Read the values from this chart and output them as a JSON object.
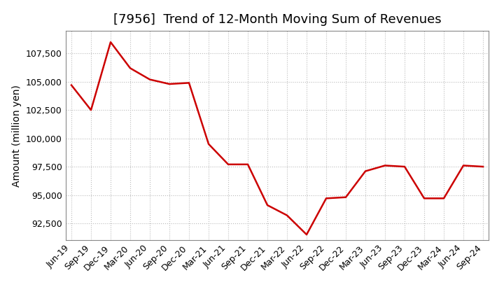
{
  "title": "[7956]  Trend of 12-Month Moving Sum of Revenues",
  "ylabel": "Amount (million yen)",
  "x_labels": [
    "Jun-19",
    "Sep-19",
    "Dec-19",
    "Mar-20",
    "Jun-20",
    "Sep-20",
    "Dec-20",
    "Mar-21",
    "Jun-21",
    "Sep-21",
    "Dec-21",
    "Mar-22",
    "Jun-22",
    "Sep-22",
    "Dec-22",
    "Mar-23",
    "Jun-23",
    "Sep-23",
    "Dec-23",
    "Mar-24",
    "Jun-24",
    "Sep-24"
  ],
  "values": [
    104700,
    102500,
    108500,
    106200,
    105200,
    104800,
    104900,
    99500,
    97700,
    97700,
    94100,
    93200,
    91500,
    94700,
    94800,
    97100,
    97600,
    97500,
    94700,
    94700,
    97600,
    97500
  ],
  "line_color": "#cc0000",
  "background_color": "#ffffff",
  "grid_color": "#bbbbbb",
  "ylim": [
    91000,
    109500
  ],
  "yticks": [
    92500,
    95000,
    97500,
    100000,
    102500,
    105000,
    107500
  ],
  "title_fontsize": 13,
  "axis_label_fontsize": 10,
  "tick_fontsize": 9
}
